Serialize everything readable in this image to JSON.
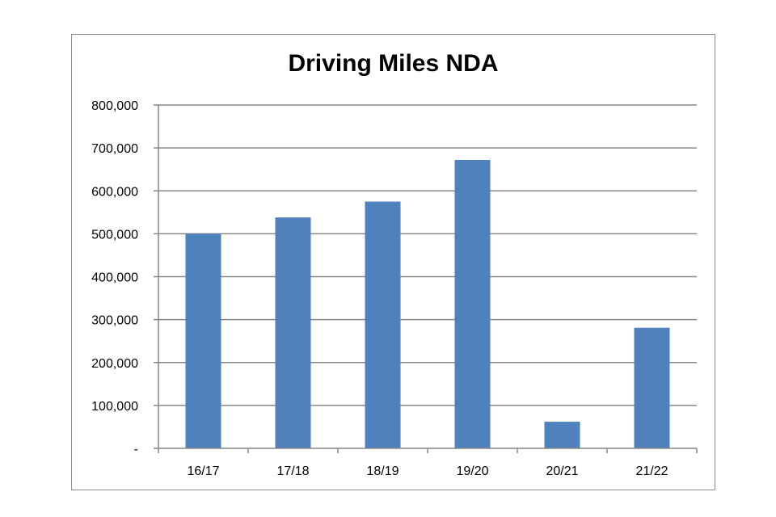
{
  "chart_data": {
    "type": "bar",
    "title": "Driving Miles NDA",
    "xlabel": "",
    "ylabel": "",
    "categories": [
      "16/17",
      "17/18",
      "18/19",
      "19/20",
      "20/21",
      "21/22"
    ],
    "values": [
      500000,
      538000,
      575000,
      672000,
      62000,
      281000
    ],
    "ylim": [
      0,
      800000
    ],
    "yticks": [
      {
        "value": 0,
        "label": "-"
      },
      {
        "value": 100000,
        "label": "100,000"
      },
      {
        "value": 200000,
        "label": "200,000"
      },
      {
        "value": 300000,
        "label": "300,000"
      },
      {
        "value": 400000,
        "label": "400,000"
      },
      {
        "value": 500000,
        "label": "500,000"
      },
      {
        "value": 600000,
        "label": "600,000"
      },
      {
        "value": 700000,
        "label": "700,000"
      },
      {
        "value": 800000,
        "label": "800,000"
      }
    ],
    "grid": true,
    "legend": "none",
    "colors": {
      "bar": "#4f81bd",
      "grid": "#868686",
      "axis": "#868686"
    }
  }
}
